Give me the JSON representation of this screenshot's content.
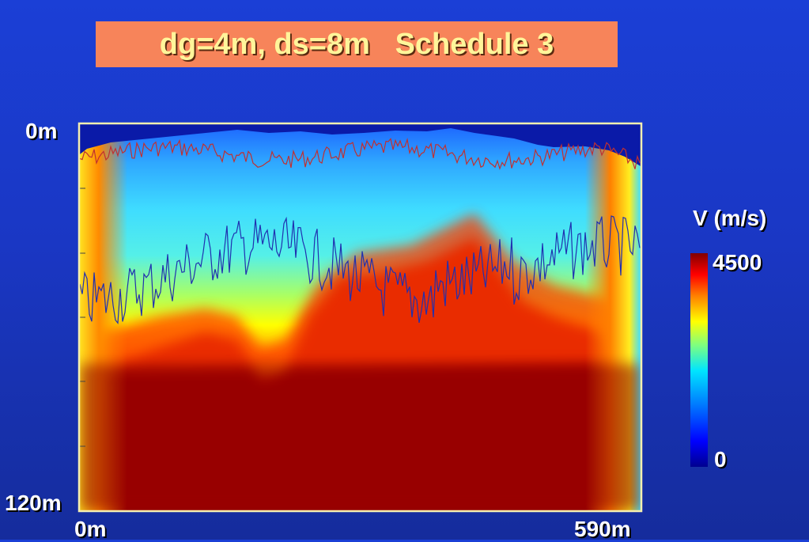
{
  "chart_data": {
    "type": "heatmap",
    "title": "dg=4m, ds=8m   Schedule 3",
    "x_ticks": [
      "0m",
      "590m"
    ],
    "y_ticks": [
      "0m",
      "120m"
    ],
    "xlim": [
      0,
      590
    ],
    "ylim": [
      0,
      120
    ],
    "colorbar": {
      "label": "V (m/s)",
      "max_label": "4500",
      "min_label": "0",
      "range": [
        0,
        4500
      ],
      "colormap": "jet"
    },
    "annotated_lines": [
      {
        "color": "#c03030",
        "description": "near-surface interface"
      },
      {
        "color": "#2020a0",
        "description": "deeper interface"
      }
    ]
  },
  "colors": {
    "background": "#1b3fd6",
    "title_box": "#f7845a",
    "title_text": "#fff59a",
    "frame": "#f5efb0"
  }
}
